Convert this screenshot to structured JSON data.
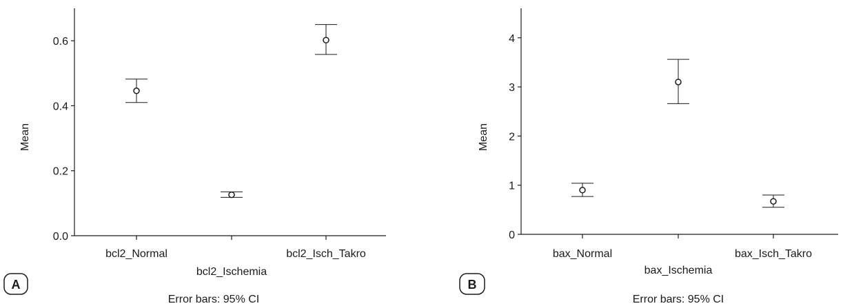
{
  "chart_data": [
    {
      "type": "scatter",
      "panel_label": "A",
      "ylabel": "Mean",
      "xlabel": "",
      "categories": [
        "bcl2_Normal",
        "bcl2_Ischemia",
        "bcl2_Isch_Takro"
      ],
      "label_rows": [
        "upper",
        "lower",
        "upper"
      ],
      "values": [
        0.446,
        0.126,
        0.602
      ],
      "ci_lower": [
        0.41,
        0.118,
        0.558
      ],
      "ci_upper": [
        0.482,
        0.135,
        0.65
      ],
      "ylim": [
        0,
        0.7
      ],
      "yticks": [
        0.0,
        0.2,
        0.4,
        0.6
      ],
      "ytick_labels": [
        "0.0",
        "0.2",
        "0.4",
        "0.6"
      ],
      "grid": false,
      "footnote": "Error bars: 95% CI",
      "marker": "open-circle",
      "color": "#1a1a1a"
    },
    {
      "type": "scatter",
      "panel_label": "B",
      "ylabel": "Mean",
      "xlabel": "",
      "categories": [
        "bax_Normal",
        "bax_Ischemia",
        "bax_Isch_Takro"
      ],
      "label_rows": [
        "upper",
        "lower",
        "upper"
      ],
      "values": [
        0.9,
        3.1,
        0.67
      ],
      "ci_lower": [
        0.77,
        2.66,
        0.55
      ],
      "ci_upper": [
        1.04,
        3.56,
        0.8
      ],
      "ylim": [
        0,
        4.6
      ],
      "yticks": [
        0,
        1,
        2,
        3,
        4
      ],
      "ytick_labels": [
        "0",
        "1",
        "2",
        "3",
        "4"
      ],
      "grid": false,
      "footnote": "Error bars: 95% CI",
      "marker": "open-circle",
      "color": "#1a1a1a"
    }
  ]
}
